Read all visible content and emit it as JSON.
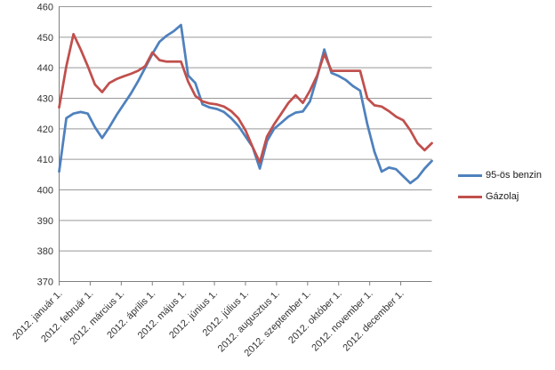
{
  "chart_data": {
    "type": "line",
    "title": "",
    "xlabel": "",
    "ylabel": "",
    "ylim": [
      370,
      460
    ],
    "ytick_step": 10,
    "grid": true,
    "legend_position": "right-middle",
    "x_description": "weekly data points spanning 2012, one tick per month start",
    "x_tick_labels": [
      "2012. január 1.",
      "2012. február 1.",
      "2012. március 1.",
      "2012. április 1.",
      "2012. május 1.",
      "2012. június 1.",
      "2012. július 1.",
      "2012. augusztus 1.",
      "2012. szeptember 1.",
      "2012. október 1.",
      "2012. november 1.",
      "2012. december 1."
    ],
    "series": [
      {
        "name": "95-ös benzin",
        "color": "#4F81BD",
        "values": [
          406,
          423.5,
          425,
          425.5,
          425,
          420.5,
          417,
          420.5,
          424.5,
          428,
          431.5,
          435.5,
          440,
          444.5,
          448.5,
          450.5,
          452,
          454,
          437.5,
          435,
          428,
          427,
          426.5,
          425.5,
          423.5,
          421,
          417.5,
          414,
          407,
          416,
          420,
          422,
          424,
          425.3,
          425.7,
          429,
          437,
          446,
          438.3,
          437.3,
          436,
          434,
          432.5,
          421.5,
          412.5,
          406,
          407.3,
          406.8,
          404.5,
          402.2,
          404,
          407,
          409.5
        ]
      },
      {
        "name": "Gázolaj",
        "color": "#C0504D",
        "values": [
          427,
          440.5,
          451,
          446,
          440.5,
          434.5,
          432,
          435,
          436.3,
          437.2,
          438,
          439,
          440.5,
          445,
          442.5,
          442,
          442,
          442,
          435.5,
          430.8,
          429,
          428.3,
          428,
          427.3,
          425.8,
          423.5,
          419.5,
          414,
          409,
          417.5,
          421.5,
          425,
          428.5,
          431,
          428.5,
          432.5,
          437.5,
          444.5,
          439,
          439,
          439,
          439,
          439,
          430,
          427.7,
          427.3,
          425.8,
          424,
          422.8,
          419.5,
          415.3,
          413,
          415.3
        ]
      }
    ],
    "style": {
      "background": "#FFFFFF",
      "gridline_color": "#999999",
      "axis_color": "#808080",
      "tick_label_color": "#333333",
      "legend_text_color": "#1a1a1a"
    }
  }
}
